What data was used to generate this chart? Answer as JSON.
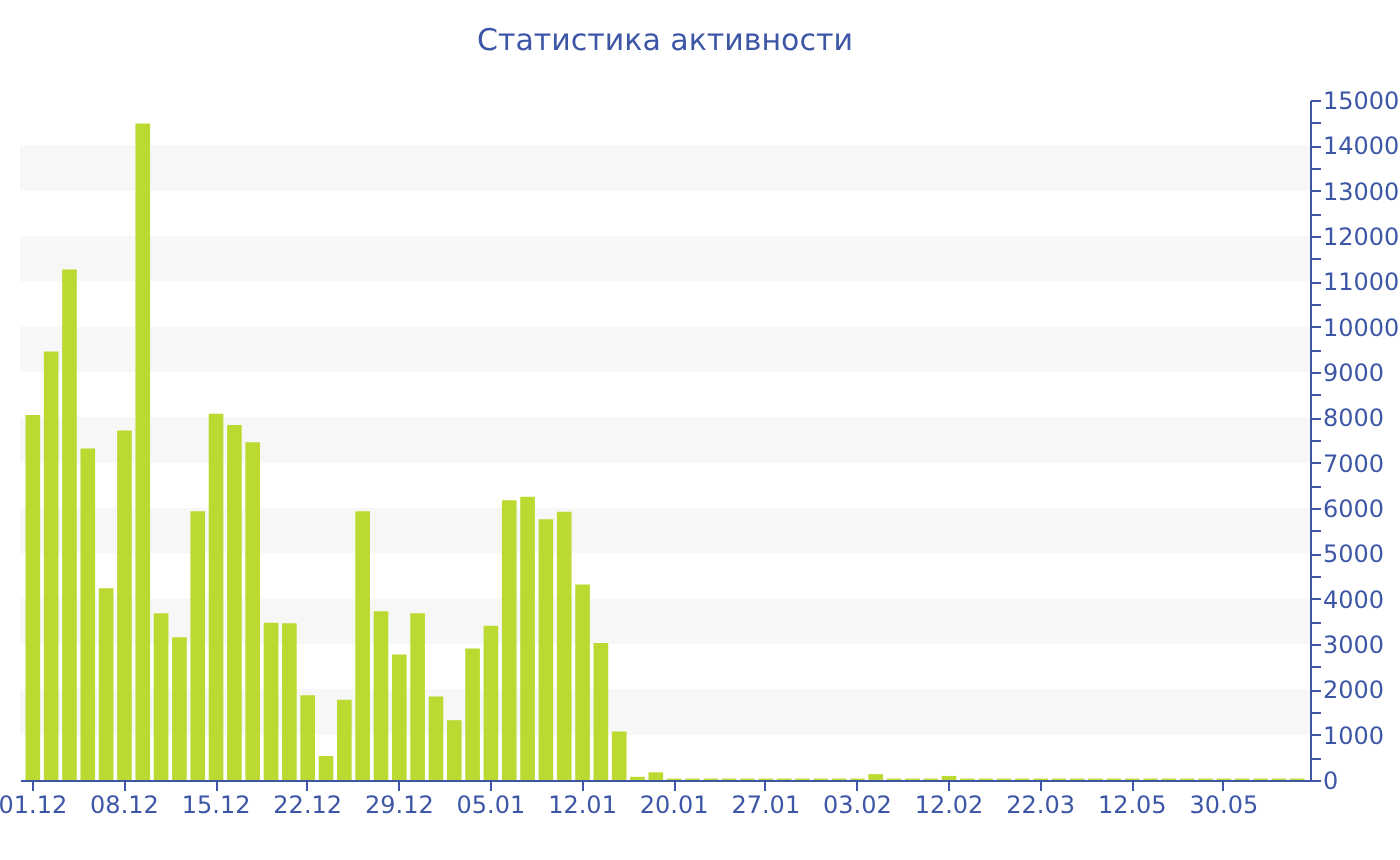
{
  "chart_data": {
    "type": "bar",
    "title": "Статистика активности",
    "categories": [
      "01.12",
      null,
      null,
      null,
      null,
      "08.12",
      null,
      null,
      null,
      null,
      "15.12",
      null,
      null,
      null,
      null,
      "22.12",
      null,
      null,
      null,
      null,
      "29.12",
      null,
      null,
      null,
      null,
      "05.01",
      null,
      null,
      null,
      null,
      "12.01",
      null,
      null,
      null,
      null,
      "20.01",
      null,
      null,
      null,
      null,
      "27.01",
      null,
      null,
      null,
      null,
      "03.02",
      null,
      null,
      null,
      null,
      "12.02",
      null,
      null,
      null,
      null,
      "22.03",
      null,
      null,
      null,
      null,
      "12.05",
      null,
      null,
      null,
      null,
      "30.05",
      null,
      null,
      null,
      null
    ],
    "values": [
      8050,
      9450,
      11260,
      7310,
      4230,
      7710,
      14480,
      3680,
      3150,
      5930,
      8080,
      7830,
      7450,
      3470,
      3460,
      1870,
      530,
      1770,
      5930,
      3720,
      2770,
      3680,
      1840,
      1320,
      2900,
      3400,
      6170,
      6250,
      5750,
      5920,
      4310,
      3020,
      1070,
      70,
      170,
      30,
      30,
      30,
      30,
      30,
      30,
      30,
      30,
      30,
      30,
      30,
      130,
      30,
      30,
      30,
      90,
      30,
      30,
      30,
      30,
      30,
      30,
      30,
      30,
      30,
      30,
      30,
      30,
      30,
      30,
      30,
      30,
      30,
      30,
      30
    ],
    "color": "#bada32",
    "ylim": [
      0,
      15000
    ],
    "yticks": [
      0,
      {
        "value": 500,
        "label": null
      },
      1000,
      {
        "value": 1500,
        "label": null
      },
      2000,
      {
        "value": 2500,
        "label": null
      },
      3000,
      {
        "value": 3500,
        "label": null
      },
      4000,
      {
        "value": 4500,
        "label": null
      },
      5000,
      {
        "value": 5500,
        "label": null
      },
      6000,
      {
        "value": 6500,
        "label": null
      },
      7000,
      {
        "value": 7500,
        "label": null
      },
      8000,
      {
        "value": 8500,
        "label": null
      },
      9000,
      {
        "value": 9500,
        "label": null
      },
      10000,
      {
        "value": 10500,
        "label": null
      },
      11000,
      {
        "value": 11500,
        "label": null
      },
      12000,
      {
        "value": 12500,
        "label": null
      },
      13000,
      {
        "value": 13500,
        "label": null
      },
      14000,
      {
        "value": 14500,
        "label": null
      },
      15000
    ],
    "bands": [
      {
        "axis": "y",
        "from": 1000,
        "to": 2000,
        "color": "#f7f7f7"
      },
      {
        "axis": "y",
        "from": 3000,
        "to": 4000,
        "color": "#f7f7f7"
      },
      {
        "axis": "y",
        "from": 5000,
        "to": 6000,
        "color": "#f7f7f7"
      },
      {
        "axis": "y",
        "from": 7000,
        "to": 8000,
        "color": "#f7f7f7"
      },
      {
        "axis": "y",
        "from": 9000,
        "to": 10000,
        "color": "#f7f7f7"
      },
      {
        "axis": "y",
        "from": 11000,
        "to": 12000,
        "color": "#f7f7f7"
      },
      {
        "axis": "y",
        "from": 13000,
        "to": 14000,
        "color": "#f7f7f7"
      }
    ]
  }
}
